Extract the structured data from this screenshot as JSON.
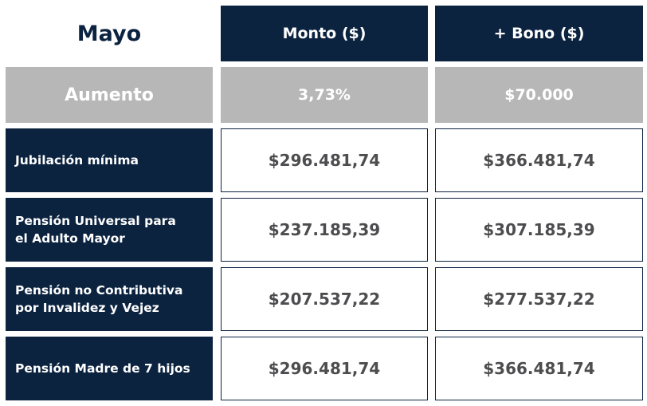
{
  "table": {
    "month_label": "Mayo",
    "headers": [
      "Monto ($)",
      "+ Bono ($)"
    ],
    "increase": {
      "label": "Aumento",
      "percent": "3,73%",
      "bonus": "$70.000"
    },
    "rows": [
      {
        "label_line1": "Jubilación mínima",
        "label_line2": "",
        "amount": "$296.481,74",
        "with_bonus": "$366.481,74"
      },
      {
        "label_line1": "Pensión Universal para",
        "label_line2": "el Adulto Mayor",
        "amount": "$237.185,39",
        "with_bonus": "$307.185,39"
      },
      {
        "label_line1": "Pensión no Contributiva",
        "label_line2": "por Invalidez y Vejez",
        "amount": "$207.537,22",
        "with_bonus": "$277.537,22"
      },
      {
        "label_line1": "Pensión Madre de 7 hijos",
        "label_line2": "",
        "amount": "$296.481,74",
        "with_bonus": "$366.481,74"
      }
    ]
  },
  "colors": {
    "navy": "#0c2340",
    "gray": "#b7b7b7",
    "value_text": "#4d4d4f"
  }
}
